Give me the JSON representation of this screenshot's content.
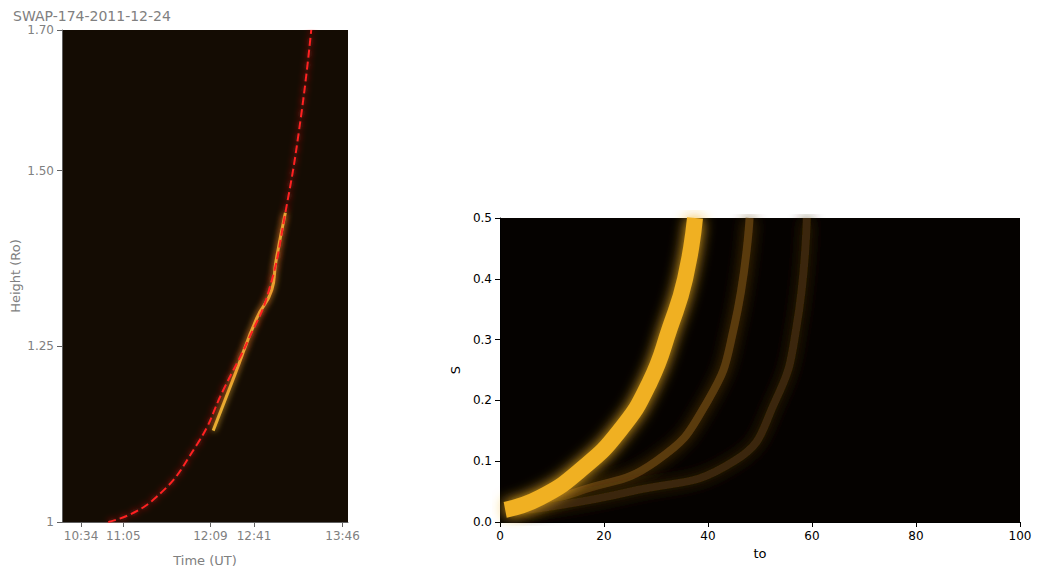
{
  "chart_data": [
    {
      "type": "line",
      "title": "SWAP-174-2011-12-24",
      "xlabel": "Time (UT)",
      "ylabel": "Height (Ro)",
      "xlim": [
        620,
        830
      ],
      "xticks": [
        {
          "value": 634,
          "label": "10:34"
        },
        {
          "value": 665,
          "label": "11:05"
        },
        {
          "value": 729,
          "label": "12:09"
        },
        {
          "value": 761,
          "label": "12:41"
        },
        {
          "value": 826,
          "label": "13:46"
        }
      ],
      "ylim": [
        1,
        1.7
      ],
      "yticks": [
        1,
        1.25,
        {
          "value": 1.5,
          "label": "1.50"
        },
        {
          "value": 1.7,
          "label": "1.70"
        }
      ],
      "grid": false,
      "series": [
        {
          "color": "#e8b030",
          "line_style": "solid",
          "x": [
            731,
            747,
            763,
            774,
            777,
            784
          ],
          "values": [
            1.13,
            1.21,
            1.29,
            1.33,
            1.37,
            1.44
          ]
        },
        {
          "color": "#ff2020",
          "line_style": "dashed",
          "x": [
            654,
            686,
            719,
            739,
            757,
            772,
            784,
            795,
            803
          ],
          "values": [
            1.0,
            1.03,
            1.11,
            1.19,
            1.26,
            1.33,
            1.44,
            1.57,
            1.7
          ]
        }
      ]
    },
    {
      "type": "line",
      "xlabel": "to",
      "ylabel": "S",
      "xlim": [
        0,
        100
      ],
      "xticks": [
        0,
        20,
        40,
        60,
        80,
        100
      ],
      "ylim": [
        0,
        0.5
      ],
      "yticks": [
        {
          "value": 0,
          "label": "0.0"
        },
        0.1,
        0.2,
        0.3,
        0.4,
        0.5
      ],
      "grid": false,
      "series": [
        {
          "color": "#5a3a10",
          "line_style": "solid",
          "x": [
            3,
            15,
            30,
            40,
            45,
            48
          ],
          "values": [
            0.02,
            0.05,
            0.1,
            0.2,
            0.32,
            0.5
          ]
        },
        {
          "color": "#3a2608",
          "line_style": "solid",
          "x": [
            5,
            25,
            45,
            53,
            57,
            59
          ],
          "values": [
            0.02,
            0.05,
            0.1,
            0.2,
            0.32,
            0.5
          ]
        },
        {
          "color": "#f0b020",
          "line_style": "solid",
          "x": [
            1,
            7.7,
            15.4,
            23,
            28.8,
            32.7,
            35.6,
            37.5
          ],
          "values": [
            0.02,
            0.04,
            0.085,
            0.15,
            0.23,
            0.32,
            0.4,
            0.5
          ]
        }
      ]
    }
  ]
}
